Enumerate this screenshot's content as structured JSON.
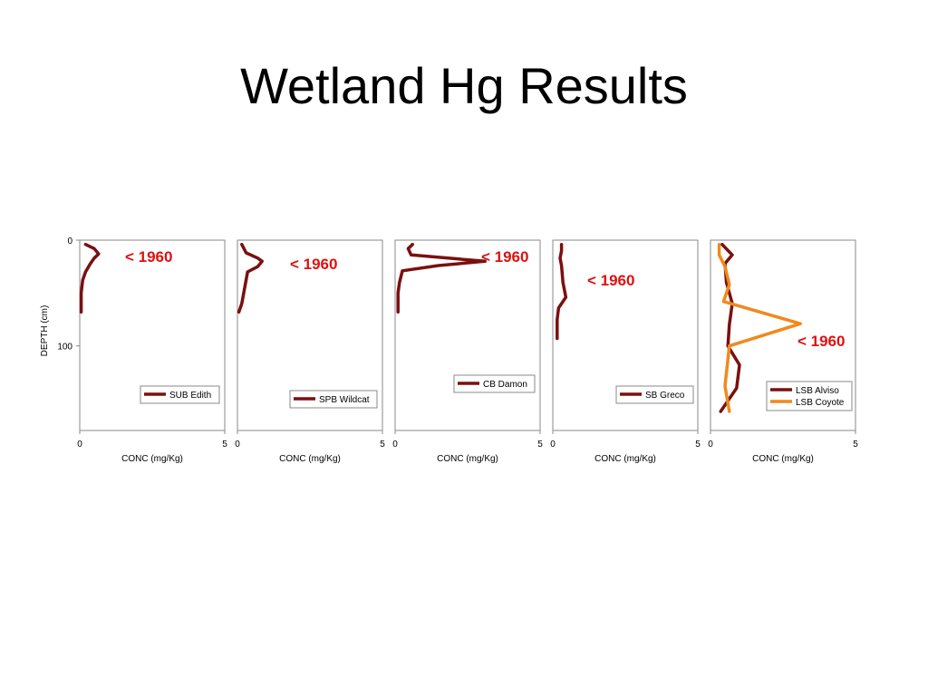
{
  "slide": {
    "title": "Wetland Hg Results"
  },
  "colors": {
    "dark_red": "#7a1010",
    "orange": "#f0891e",
    "annotation_red": "#e01010",
    "axis": "#8a8a8a"
  },
  "chart_data": [
    {
      "type": "line",
      "xlabel": "CONC (mg/Kg)",
      "ylabel": "DEPTH (cm)",
      "xlim": [
        0,
        5
      ],
      "ylim": [
        0,
        180
      ],
      "y_reversed": true,
      "x_ticks": [
        "0",
        "5"
      ],
      "y_ticks": [
        "0",
        "100"
      ],
      "annotation": "< 1960",
      "legend_position": "bottom-right",
      "series": [
        {
          "name": "SUB Edith",
          "color": "#7a1010",
          "points": [
            [
              0.2,
              4
            ],
            [
              0.5,
              8
            ],
            [
              0.65,
              13
            ],
            [
              0.5,
              17
            ],
            [
              0.35,
              23
            ],
            [
              0.2,
              30
            ],
            [
              0.1,
              38
            ],
            [
              0.05,
              50
            ],
            [
              0.05,
              68
            ]
          ]
        }
      ]
    },
    {
      "type": "line",
      "xlabel": "CONC (mg/Kg)",
      "xlim": [
        0,
        5
      ],
      "ylim": [
        0,
        180
      ],
      "y_reversed": true,
      "x_ticks": [
        "0",
        "5"
      ],
      "annotation": "< 1960",
      "legend_position": "bottom-right",
      "series": [
        {
          "name": "SPB Wildcat",
          "color": "#7a1010",
          "points": [
            [
              0.15,
              4
            ],
            [
              0.3,
              12
            ],
            [
              0.7,
              17
            ],
            [
              0.85,
              20
            ],
            [
              0.7,
              25
            ],
            [
              0.35,
              30
            ],
            [
              0.25,
              45
            ],
            [
              0.15,
              60
            ],
            [
              0.05,
              68
            ]
          ]
        }
      ]
    },
    {
      "type": "line",
      "xlabel": "CONC (mg/Kg)",
      "xlim": [
        0,
        5
      ],
      "ylim": [
        0,
        180
      ],
      "y_reversed": true,
      "x_ticks": [
        "0",
        "5"
      ],
      "annotation": "< 1960",
      "legend_position": "bottom-right",
      "series": [
        {
          "name": "CB Damon",
          "color": "#7a1010",
          "points": [
            [
              0.6,
              4
            ],
            [
              0.45,
              8
            ],
            [
              0.55,
              14
            ],
            [
              3.1,
              20
            ],
            [
              1.5,
              24
            ],
            [
              0.25,
              29
            ],
            [
              0.15,
              40
            ],
            [
              0.1,
              50
            ],
            [
              0.1,
              68
            ]
          ]
        }
      ]
    },
    {
      "type": "line",
      "xlabel": "CONC (mg/Kg)",
      "xlim": [
        0,
        5
      ],
      "ylim": [
        0,
        180
      ],
      "y_reversed": true,
      "x_ticks": [
        "0",
        "5"
      ],
      "annotation": "< 1960",
      "legend_position": "bottom-right",
      "series": [
        {
          "name": "SB Greco",
          "color": "#7a1010",
          "points": [
            [
              0.3,
              4
            ],
            [
              0.3,
              10
            ],
            [
              0.25,
              17
            ],
            [
              0.3,
              24
            ],
            [
              0.35,
              40
            ],
            [
              0.45,
              54
            ],
            [
              0.2,
              64
            ],
            [
              0.15,
              75
            ],
            [
              0.15,
              93
            ]
          ]
        }
      ]
    },
    {
      "type": "line",
      "xlabel": "CONC (mg/Kg)",
      "xlim": [
        0,
        5
      ],
      "ylim": [
        0,
        180
      ],
      "y_reversed": true,
      "x_ticks": [
        "0",
        "5"
      ],
      "annotation": "< 1960",
      "legend_position": "bottom-right",
      "series": [
        {
          "name": "LSB Alviso",
          "color": "#7a1010",
          "points": [
            [
              0.4,
              4
            ],
            [
              0.75,
              14
            ],
            [
              0.5,
              22
            ],
            [
              0.55,
              40
            ],
            [
              0.75,
              60
            ],
            [
              0.65,
              80
            ],
            [
              0.6,
              100
            ],
            [
              1.0,
              118
            ],
            [
              0.9,
              140
            ],
            [
              0.35,
              162
            ]
          ]
        },
        {
          "name": "LSB Coyote",
          "color": "#f0891e",
          "points": [
            [
              0.3,
              4
            ],
            [
              0.3,
              14
            ],
            [
              0.5,
              25
            ],
            [
              0.65,
              42
            ],
            [
              0.45,
              58
            ],
            [
              3.1,
              79
            ],
            [
              0.65,
              100
            ],
            [
              0.5,
              138
            ],
            [
              0.65,
              162
            ]
          ]
        }
      ]
    }
  ]
}
